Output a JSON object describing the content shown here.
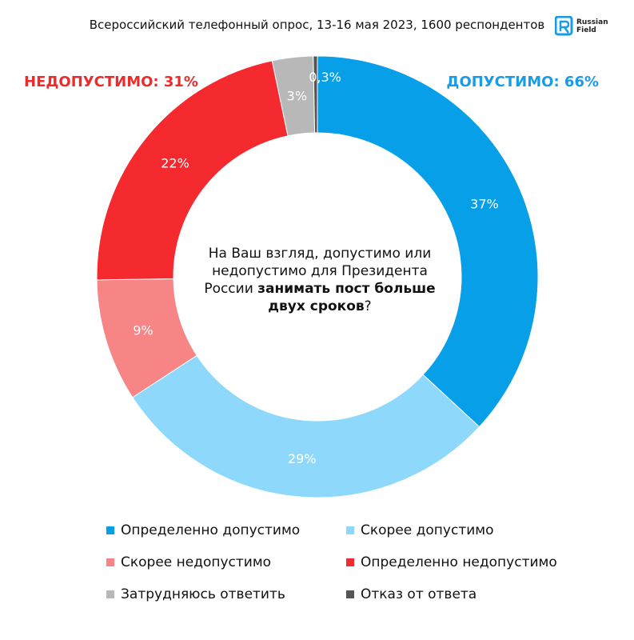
{
  "header": {
    "subtitle": "Всероссийский телефонный опрос, 13-16 мая 2023, 1600 респондентов",
    "logo_text_line1": "Russian",
    "logo_text_line2": "Field"
  },
  "groups": {
    "unacceptable": "НЕДОПУСТИМО: 31%",
    "acceptable": "ДОПУСТИМО: 66%"
  },
  "question": {
    "line1": "На Ваш взгляд, допустимо или",
    "line2": "недопустимо для Президента",
    "line3_normal": "России ",
    "line3_bold": "занимать пост больше",
    "line4_bold": "двух сроков",
    "line4_normal": "?"
  },
  "chart_data": {
    "type": "pie",
    "variant": "donut",
    "slices": [
      {
        "name": "Определенно допустимо",
        "value": 37,
        "label": "37%",
        "color": "#079fe8"
      },
      {
        "name": "Скорее допустимо",
        "value": 29,
        "label": "29%",
        "color": "#8ed9fb"
      },
      {
        "name": "Скорее недопустимо",
        "value": 9,
        "label": "9%",
        "color": "#f88585"
      },
      {
        "name": "Определенно недопустимо",
        "value": 22,
        "label": "22%",
        "color": "#f52a2e"
      },
      {
        "name": "Затрудняюсь ответить",
        "value": 3,
        "label": "3%",
        "color": "#b8b8b8"
      },
      {
        "name": "Отказ от ответа",
        "value": 0.3,
        "label": "0,3%",
        "color": "#555555"
      }
    ],
    "legend_position": "bottom"
  }
}
